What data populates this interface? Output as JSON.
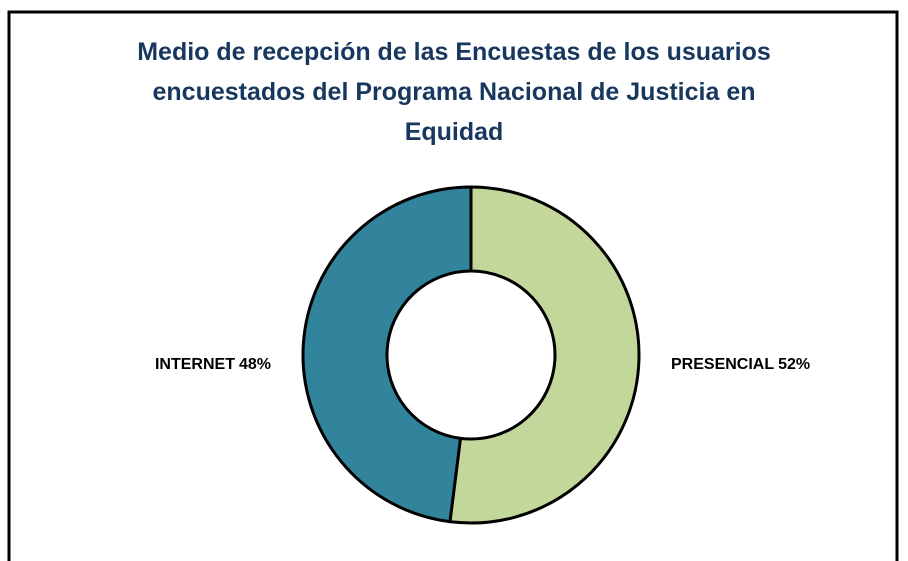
{
  "chart_data": {
    "type": "donut",
    "title": "Medio de recepción de las Encuestas de los usuarios encuestados del Programa Nacional de Justicia en Equidad",
    "categories": [
      "PRESENCIAL",
      "INTERNET"
    ],
    "values": [
      52,
      48
    ],
    "value_labels": [
      "52%",
      "48%"
    ],
    "colors": [
      "#c4d79b",
      "#31849b"
    ]
  }
}
